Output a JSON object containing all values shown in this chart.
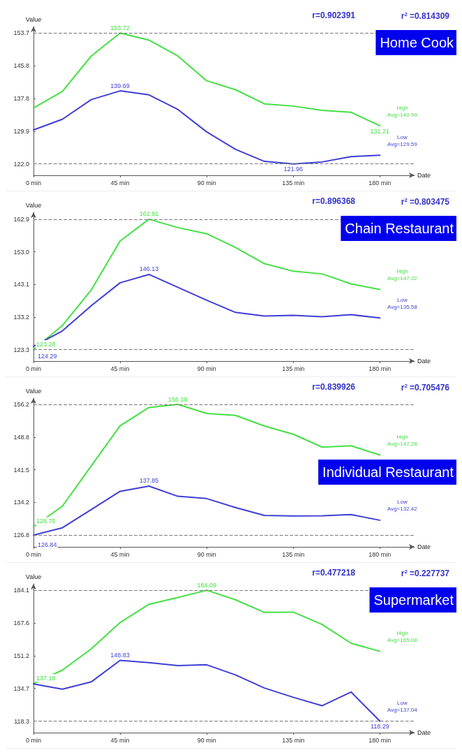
{
  "chart_data": [
    {
      "type": "line",
      "title": "Home Cook",
      "xlabel": "Date",
      "ylabel": "Value",
      "x": [
        0,
        15,
        30,
        45,
        60,
        75,
        90,
        105,
        120,
        135,
        150,
        165,
        180
      ],
      "xlim": [
        0,
        198
      ],
      "xticks": [
        {
          "value": 0,
          "label": "0 min"
        },
        {
          "value": 45,
          "label": "45 min"
        },
        {
          "value": 90,
          "label": "90 min"
        },
        {
          "value": 135,
          "label": "135 min"
        },
        {
          "value": 180,
          "label": "180 min"
        }
      ],
      "ylim": [
        119.2,
        155.3
      ],
      "yticks": [
        {
          "value": 121.96,
          "label": "122.0"
        },
        {
          "value": 129.9,
          "label": "129.9"
        },
        {
          "value": 137.84,
          "label": "137.8"
        },
        {
          "value": 145.78,
          "label": "145.8"
        },
        {
          "value": 153.72,
          "label": "153.7"
        }
      ],
      "grid": false,
      "legend": false,
      "marker": "none",
      "line_style": "solid",
      "series": [
        {
          "name": "High",
          "color": "#44e044",
          "values": [
            135.52,
            139.55,
            148.14,
            153.72,
            152.0,
            148.14,
            142.14,
            139.96,
            136.55,
            136.0,
            134.98,
            134.5,
            131.21
          ],
          "value_labels": [
            null,
            null,
            null,
            "153.72",
            null,
            null,
            null,
            null,
            null,
            null,
            null,
            null,
            "131.21"
          ]
        },
        {
          "name": "Low",
          "color": "#3f3fd6",
          "values": [
            130.21,
            132.8,
            137.57,
            139.69,
            138.73,
            135.18,
            129.73,
            125.5,
            122.57,
            121.96,
            122.44,
            123.73,
            124.07
          ],
          "value_labels": [
            null,
            null,
            null,
            "139.69",
            null,
            null,
            null,
            null,
            null,
            "121.96",
            null,
            null,
            null
          ]
        }
      ],
      "ref_lines": [
        {
          "axis": "y",
          "value": 121.96,
          "label": null,
          "color": "#777777",
          "line_style": "dashed"
        },
        {
          "axis": "y",
          "value": 153.72,
          "label": null,
          "color": "#777777",
          "line_style": "dashed"
        }
      ],
      "annotations": [
        "r=0.902391",
        "r$^{2}$=0.814309",
        "Avg=140.99",
        "Avg=129.59"
      ]
    },
    {
      "type": "line",
      "title": "Chain Restaurant",
      "xlabel": "Date",
      "ylabel": "Value",
      "x": [
        0,
        15,
        30,
        45,
        60,
        75,
        90,
        105,
        120,
        135,
        150,
        165,
        180
      ],
      "xlim": [
        0,
        198
      ],
      "xticks": [
        {
          "value": 0,
          "label": "0 min"
        },
        {
          "value": 45,
          "label": "45 min"
        },
        {
          "value": 90,
          "label": "90 min"
        },
        {
          "value": 135,
          "label": "135 min"
        },
        {
          "value": 180,
          "label": "180 min"
        }
      ],
      "ylim": [
        119.8,
        165.0
      ],
      "yticks": [
        {
          "value": 123.28,
          "label": "123.3"
        },
        {
          "value": 133.19,
          "label": "133.2"
        },
        {
          "value": 143.1,
          "label": "143.1"
        },
        {
          "value": 153.0,
          "label": "153.0"
        },
        {
          "value": 162.91,
          "label": "162.9"
        }
      ],
      "grid": false,
      "legend": false,
      "marker": "none",
      "line_style": "solid",
      "series": [
        {
          "name": "High",
          "color": "#44e044",
          "values": [
            123.28,
            130.6,
            141.4,
            156.3,
            162.91,
            160.36,
            158.49,
            154.32,
            149.39,
            147.1,
            146.3,
            143.26,
            141.56
          ],
          "value_labels": [
            "123.28",
            null,
            null,
            null,
            "162.91",
            null,
            null,
            null,
            null,
            null,
            null,
            null,
            null
          ]
        },
        {
          "name": "Low",
          "color": "#3f3fd6",
          "values": [
            124.29,
            128.96,
            136.6,
            143.6,
            146.13,
            142.2,
            138.3,
            134.59,
            133.5,
            133.7,
            133.3,
            133.9,
            132.9
          ],
          "value_labels": [
            "124.29",
            null,
            null,
            null,
            "146.13",
            null,
            null,
            null,
            null,
            null,
            null,
            null,
            null
          ]
        }
      ],
      "ref_lines": [
        {
          "axis": "y",
          "value": 123.28,
          "label": null,
          "color": "#777777",
          "line_style": "dashed"
        },
        {
          "axis": "y",
          "value": 162.91,
          "label": null,
          "color": "#777777",
          "line_style": "dashed"
        }
      ],
      "annotations": [
        "r=0.896368",
        "r$^{2}$=0.803475",
        "Avg=147.32",
        "Avg=135.58"
      ]
    },
    {
      "type": "line",
      "title": "Individual Restaurant",
      "xlabel": "Date",
      "ylabel": "Value",
      "x": [
        0,
        15,
        30,
        45,
        60,
        75,
        90,
        105,
        120,
        135,
        150,
        165,
        180
      ],
      "xlim": [
        0,
        198
      ],
      "xticks": [
        {
          "value": 0,
          "label": "0 min"
        },
        {
          "value": 45,
          "label": "45 min"
        },
        {
          "value": 90,
          "label": "90 min"
        },
        {
          "value": 135,
          "label": "135 min"
        },
        {
          "value": 180,
          "label": "180 min"
        }
      ],
      "ylim": [
        124.2,
        157.6
      ],
      "yticks": [
        {
          "value": 126.84,
          "label": "126.8"
        },
        {
          "value": 134.17,
          "label": "134.2"
        },
        {
          "value": 141.51,
          "label": "141.5"
        },
        {
          "value": 148.84,
          "label": "148.8"
        },
        {
          "value": 156.18,
          "label": "156.2"
        }
      ],
      "grid": false,
      "legend": false,
      "marker": "none",
      "line_style": "solid",
      "series": [
        {
          "name": "High",
          "color": "#44e044",
          "values": [
            128.75,
            133.34,
            142.36,
            151.38,
            155.49,
            156.18,
            154.16,
            153.72,
            151.32,
            149.49,
            146.59,
            146.9,
            144.82
          ],
          "value_labels": [
            "128.75",
            null,
            null,
            null,
            null,
            "156.18",
            null,
            null,
            null,
            null,
            null,
            null,
            null
          ]
        },
        {
          "name": "Low",
          "color": "#3f3fd6",
          "values": [
            126.84,
            128.48,
            132.58,
            136.68,
            137.85,
            135.55,
            135.04,
            133.02,
            131.26,
            131.13,
            131.19,
            131.45,
            130.18
          ],
          "value_labels": [
            "126.84",
            null,
            null,
            null,
            "137.85",
            null,
            null,
            null,
            null,
            null,
            null,
            null,
            null
          ]
        }
      ],
      "ref_lines": [
        {
          "axis": "y",
          "value": 126.84,
          "label": null,
          "color": "#777777",
          "line_style": "dashed"
        },
        {
          "axis": "y",
          "value": 156.18,
          "label": null,
          "color": "#777777",
          "line_style": "dashed"
        }
      ],
      "annotations": [
        "r=0.839926",
        "r$^{2}$=0.705476",
        "Avg=147.28",
        "Avg=132.42"
      ]
    },
    {
      "type": "line",
      "title": "Supermarket",
      "xlabel": "Date",
      "ylabel": "Value",
      "x": [
        0,
        15,
        30,
        45,
        60,
        75,
        90,
        105,
        120,
        135,
        150,
        165,
        180
      ],
      "xlim": [
        0,
        198
      ],
      "xticks": [
        {
          "value": 0,
          "label": "0 min"
        },
        {
          "value": 45,
          "label": "45 min"
        },
        {
          "value": 90,
          "label": "90 min"
        },
        {
          "value": 135,
          "label": "135 min"
        },
        {
          "value": 180,
          "label": "180 min"
        }
      ],
      "ylim": [
        112.5,
        187.3
      ],
      "yticks": [
        {
          "value": 118.29,
          "label": "118.3"
        },
        {
          "value": 134.74,
          "label": "134.7"
        },
        {
          "value": 151.19,
          "label": "151.2"
        },
        {
          "value": 167.64,
          "label": "167.6"
        },
        {
          "value": 184.09,
          "label": "184.1"
        }
      ],
      "grid": false,
      "legend": false,
      "marker": "none",
      "line_style": "solid",
      "series": [
        {
          "name": "High",
          "color": "#44e044",
          "values": [
            137.18,
            143.93,
            154.64,
            167.88,
            177.04,
            180.43,
            184.09,
            179.3,
            172.96,
            173.1,
            166.9,
            157.46,
            153.37
          ],
          "value_labels": [
            "137.18",
            null,
            null,
            null,
            null,
            null,
            "184.09",
            null,
            null,
            null,
            null,
            null,
            null
          ]
        },
        {
          "name": "Low",
          "color": "#3f3fd6",
          "values": [
            137.03,
            134.35,
            138.02,
            148.83,
            147.74,
            146.19,
            146.61,
            141.53,
            134.92,
            130.27,
            126.04,
            132.94,
            118.29
          ],
          "value_labels": [
            null,
            null,
            null,
            "148.83",
            null,
            null,
            null,
            null,
            null,
            null,
            null,
            null,
            "118.29"
          ]
        }
      ],
      "ref_lines": [
        {
          "axis": "y",
          "value": 118.29,
          "label": null,
          "color": "#777777",
          "line_style": "dashed"
        },
        {
          "axis": "y",
          "value": 184.09,
          "label": null,
          "color": "#777777",
          "line_style": "dashed"
        }
      ],
      "annotations": [
        "r=0.477218",
        "r$^{2}$=0.227737",
        "Avg=165.08",
        "Avg=137.04"
      ]
    }
  ]
}
